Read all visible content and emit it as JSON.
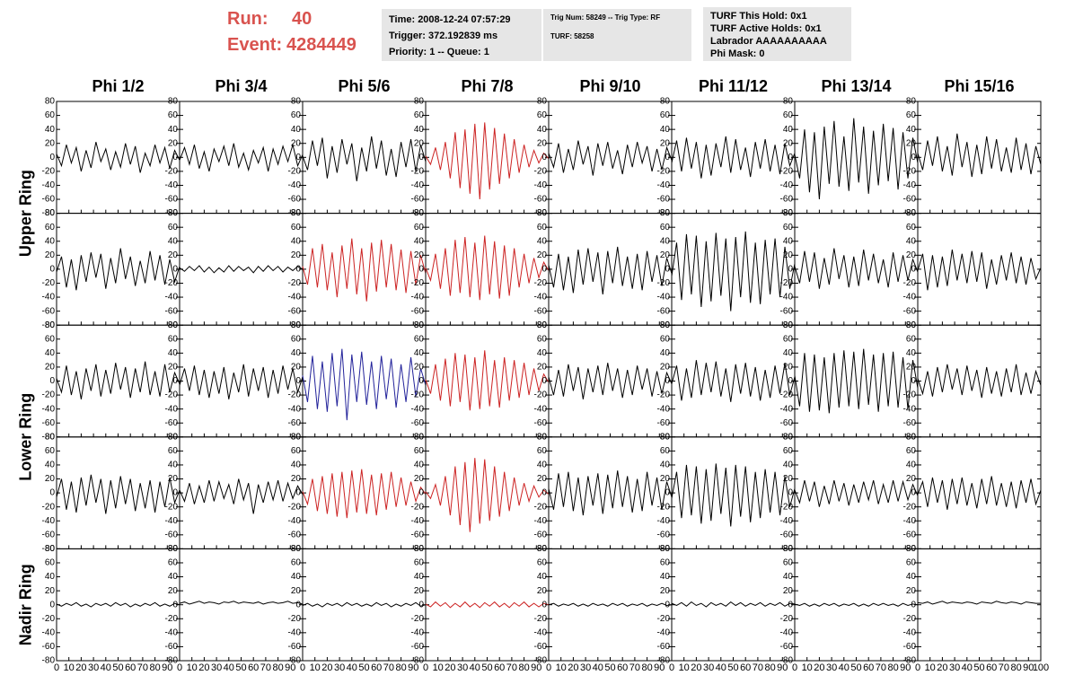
{
  "header": {
    "run_label": "Run:",
    "run": "40",
    "event_label": "Event:",
    "event": "4284449",
    "time": "Time: 2008-12-24 07:57:29",
    "trigger": "Trigger: 372.192839 ms",
    "priority": "Priority: 1 -- Queue: 1",
    "trig_num": "Trig Num: 58249 -- Trig Type: RF",
    "turf": "TURF: 58258",
    "turf_hold": "TURF This Hold: 0x1",
    "turf_active": "TURF Active Holds: 0x1",
    "labrador": "Labrador AAAAAAAAAA",
    "phi_mask": "Phi Mask: 0"
  },
  "chart_data": {
    "type": "line",
    "column_labels": [
      "Phi 1/2",
      "Phi 3/4",
      "Phi 5/6",
      "Phi 7/8",
      "Phi 9/10",
      "Phi 11/12",
      "Phi 13/14",
      "Phi 15/16"
    ],
    "ring_labels": [
      "Upper Ring",
      "Lower Ring",
      "Nadir Ring"
    ],
    "xlim": [
      0,
      100
    ],
    "xticks": [
      0,
      10,
      20,
      30,
      40,
      50,
      60,
      70,
      80,
      90,
      100
    ],
    "ylim": [
      -80,
      80
    ],
    "yticks": [
      80,
      60,
      40,
      20,
      0,
      -20,
      -40,
      -60,
      -80
    ],
    "x": [
      0,
      4,
      8,
      12,
      16,
      20,
      24,
      28,
      32,
      36,
      40,
      44,
      48,
      52,
      56,
      60,
      64,
      68,
      72,
      76,
      80,
      84,
      88,
      92,
      96,
      100
    ],
    "series": [
      {
        "color": "#000000",
        "values": [
          5,
          -12,
          18,
          -8,
          14,
          -20,
          10,
          -15,
          22,
          -6,
          12,
          -18,
          8,
          -14,
          20,
          -10,
          16,
          -22,
          6,
          -12,
          18,
          -8,
          14,
          -16,
          10,
          -4
        ]
      },
      {
        "color": "#000000",
        "values": [
          -4,
          14,
          -10,
          18,
          -16,
          8,
          -20,
          12,
          -6,
          16,
          -12,
          20,
          -14,
          6,
          -18,
          10,
          -8,
          14,
          -20,
          12,
          -10,
          16,
          -6,
          18,
          -12,
          4
        ]
      },
      {
        "color": "#000000",
        "values": [
          2,
          -18,
          24,
          -12,
          28,
          -30,
          16,
          -22,
          26,
          -10,
          20,
          -34,
          14,
          -20,
          30,
          -16,
          24,
          -26,
          12,
          -28,
          22,
          -14,
          26,
          -20,
          18,
          -6
        ]
      },
      {
        "color": "#cc2222",
        "values": [
          2,
          -10,
          14,
          -18,
          22,
          -30,
          36,
          -44,
          40,
          -52,
          48,
          -60,
          50,
          -46,
          42,
          -38,
          34,
          -30,
          26,
          -22,
          18,
          -14,
          10,
          -8,
          6,
          -2
        ]
      },
      {
        "color": "#000000",
        "values": [
          6,
          -14,
          20,
          -22,
          12,
          -18,
          24,
          -10,
          16,
          -26,
          20,
          -12,
          22,
          -16,
          10,
          -24,
          18,
          -14,
          22,
          -8,
          16,
          -20,
          12,
          -18,
          14,
          -4
        ]
      },
      {
        "color": "#000000",
        "values": [
          -8,
          24,
          -20,
          28,
          -16,
          22,
          -30,
          18,
          -26,
          20,
          -14,
          30,
          -22,
          26,
          -18,
          14,
          -28,
          22,
          -16,
          26,
          -20,
          18,
          -24,
          20,
          -12,
          6
        ]
      },
      {
        "color": "#000000",
        "values": [
          4,
          -30,
          40,
          -50,
          36,
          -60,
          44,
          -38,
          52,
          -42,
          30,
          -48,
          56,
          -36,
          44,
          -52,
          38,
          -40,
          48,
          -34,
          42,
          -46,
          36,
          -30,
          28,
          -8
        ]
      },
      {
        "color": "#000000",
        "values": [
          6,
          -18,
          24,
          -12,
          30,
          -20,
          16,
          -26,
          34,
          -14,
          22,
          -28,
          18,
          -24,
          30,
          -16,
          26,
          -20,
          14,
          -22,
          28,
          -18,
          20,
          -24,
          16,
          -10
        ]
      },
      {
        "color": "#000000",
        "values": [
          -4,
          18,
          -26,
          14,
          -30,
          20,
          -18,
          24,
          -12,
          22,
          -28,
          16,
          -20,
          30,
          -14,
          18,
          -24,
          12,
          -20,
          26,
          -16,
          20,
          -22,
          14,
          -18,
          4
        ]
      },
      {
        "color": "#000000",
        "values": [
          2,
          -3,
          4,
          -2,
          5,
          -4,
          3,
          -5,
          2,
          -4,
          5,
          -3,
          4,
          -2,
          3,
          -5,
          4,
          -3,
          5,
          -2,
          4,
          -4,
          3,
          -2,
          4,
          0
        ]
      },
      {
        "color": "#cc2222",
        "values": [
          4,
          -22,
          30,
          -26,
          36,
          -30,
          24,
          -40,
          34,
          -28,
          44,
          -36,
          30,
          -46,
          38,
          -32,
          42,
          -26,
          36,
          -30,
          28,
          -34,
          26,
          -22,
          20,
          -6
        ]
      },
      {
        "color": "#cc2222",
        "values": [
          2,
          -16,
          22,
          -28,
          30,
          -38,
          42,
          -34,
          46,
          -40,
          38,
          -44,
          48,
          -36,
          40,
          -42,
          34,
          -38,
          30,
          -26,
          22,
          -20,
          16,
          -12,
          10,
          -2
        ]
      },
      {
        "color": "#000000",
        "values": [
          6,
          -26,
          22,
          -30,
          18,
          -34,
          28,
          -22,
          30,
          -18,
          24,
          -36,
          26,
          -20,
          32,
          -24,
          18,
          -28,
          22,
          -30,
          26,
          -18,
          20,
          -24,
          16,
          -6
        ]
      },
      {
        "color": "#000000",
        "values": [
          -10,
          38,
          -44,
          50,
          -36,
          48,
          -54,
          40,
          -46,
          52,
          -38,
          44,
          -60,
          46,
          -40,
          54,
          -48,
          38,
          -50,
          42,
          -36,
          44,
          -40,
          32,
          -28,
          8
        ]
      },
      {
        "color": "#000000",
        "values": [
          4,
          -20,
          26,
          -18,
          24,
          -28,
          16,
          -22,
          30,
          -14,
          20,
          -26,
          18,
          -24,
          28,
          -16,
          22,
          -20,
          14,
          -26,
          24,
          -18,
          20,
          -16,
          14,
          -4
        ]
      },
      {
        "color": "#000000",
        "values": [
          -2,
          22,
          -30,
          20,
          -26,
          18,
          -24,
          28,
          -16,
          22,
          -20,
          26,
          -18,
          24,
          -28,
          14,
          -22,
          20,
          -16,
          24,
          -20,
          18,
          -22,
          16,
          -14,
          2
        ]
      },
      {
        "color": "#000000",
        "values": [
          4,
          -16,
          22,
          -20,
          14,
          -26,
          18,
          -14,
          24,
          -22,
          16,
          -18,
          26,
          -12,
          20,
          -24,
          18,
          -16,
          28,
          -20,
          14,
          -22,
          24,
          -16,
          12,
          -4
        ]
      },
      {
        "color": "#000000",
        "values": [
          -6,
          18,
          -14,
          22,
          -20,
          16,
          -24,
          14,
          -18,
          20,
          -26,
          12,
          -16,
          24,
          -22,
          18,
          -14,
          20,
          -24,
          16,
          -18,
          22,
          -12,
          18,
          -16,
          6
        ]
      },
      {
        "color": "#22229a",
        "values": [
          8,
          -30,
          36,
          -40,
          28,
          -44,
          40,
          -36,
          46,
          -56,
          38,
          -30,
          42,
          -34,
          28,
          -40,
          36,
          -26,
          32,
          -38,
          24,
          -30,
          34,
          -22,
          18,
          -6
        ]
      },
      {
        "color": "#cc2222",
        "values": [
          2,
          -18,
          24,
          -28,
          32,
          -36,
          40,
          -30,
          38,
          -42,
          34,
          -40,
          44,
          -36,
          30,
          -38,
          34,
          -28,
          30,
          -24,
          26,
          -20,
          18,
          -14,
          10,
          -2
        ]
      },
      {
        "color": "#000000",
        "values": [
          6,
          -20,
          16,
          -22,
          24,
          -14,
          20,
          -26,
          18,
          -16,
          22,
          -20,
          26,
          -14,
          18,
          -24,
          16,
          -20,
          22,
          -12,
          18,
          -22,
          14,
          -18,
          12,
          -4
        ]
      },
      {
        "color": "#000000",
        "values": [
          -4,
          22,
          -28,
          18,
          -24,
          30,
          -20,
          26,
          -16,
          28,
          -22,
          18,
          -30,
          24,
          -18,
          26,
          -22,
          20,
          -28,
          16,
          -24,
          22,
          -18,
          26,
          -20,
          6
        ]
      },
      {
        "color": "#000000",
        "values": [
          8,
          -36,
          40,
          -44,
          38,
          -42,
          34,
          -46,
          40,
          -38,
          44,
          -36,
          42,
          -40,
          46,
          -34,
          38,
          -44,
          40,
          -36,
          42,
          -38,
          34,
          -40,
          30,
          -10
        ]
      },
      {
        "color": "#000000",
        "values": [
          4,
          -18,
          14,
          -22,
          20,
          -16,
          24,
          -12,
          18,
          -20,
          22,
          -14,
          16,
          -24,
          20,
          -18,
          14,
          -22,
          18,
          -16,
          24,
          -20,
          12,
          -18,
          14,
          -6
        ]
      },
      {
        "color": "#000000",
        "values": [
          -6,
          20,
          -24,
          16,
          -28,
          22,
          -18,
          26,
          -14,
          20,
          -30,
          18,
          -22,
          24,
          -16,
          20,
          -26,
          14,
          -22,
          18,
          -28,
          16,
          -20,
          22,
          -14,
          4
        ]
      },
      {
        "color": "#000000",
        "values": [
          4,
          -12,
          14,
          -16,
          10,
          -14,
          18,
          -12,
          16,
          -8,
          12,
          -16,
          20,
          -10,
          14,
          -30,
          12,
          -14,
          16,
          -10,
          18,
          -12,
          14,
          -8,
          10,
          -2
        ]
      },
      {
        "color": "#cc2222",
        "values": [
          2,
          -16,
          20,
          -26,
          24,
          -30,
          28,
          -34,
          30,
          -36,
          32,
          -28,
          34,
          -30,
          26,
          -32,
          28,
          -24,
          30,
          -20,
          22,
          -18,
          16,
          -12,
          8,
          -2
        ]
      },
      {
        "color": "#cc2222",
        "values": [
          2,
          -8,
          12,
          -18,
          24,
          -32,
          38,
          -46,
          44,
          -56,
          50,
          -44,
          48,
          -40,
          38,
          -34,
          30,
          -26,
          22,
          -18,
          14,
          -12,
          10,
          -6,
          4,
          -2
        ]
      },
      {
        "color": "#000000",
        "values": [
          6,
          -24,
          28,
          -20,
          30,
          -26,
          22,
          -32,
          24,
          -18,
          28,
          -30,
          26,
          -22,
          32,
          -20,
          24,
          -28,
          20,
          -26,
          30,
          -18,
          22,
          -24,
          16,
          -6
        ]
      },
      {
        "color": "#000000",
        "values": [
          -8,
          30,
          -36,
          40,
          -32,
          38,
          -44,
          34,
          -40,
          42,
          -30,
          36,
          -48,
          40,
          -34,
          38,
          -42,
          30,
          -36,
          34,
          -28,
          30,
          -32,
          24,
          -20,
          6
        ]
      },
      {
        "color": "#000000",
        "values": [
          4,
          -14,
          18,
          -12,
          16,
          -20,
          10,
          -16,
          18,
          -12,
          14,
          -18,
          12,
          -14,
          16,
          -10,
          18,
          -16,
          12,
          -14,
          18,
          -12,
          16,
          -10,
          12,
          -4
        ]
      },
      {
        "color": "#000000",
        "values": [
          -2,
          16,
          -20,
          22,
          -14,
          18,
          -24,
          20,
          -16,
          22,
          -18,
          14,
          -22,
          20,
          -16,
          24,
          -18,
          14,
          -20,
          16,
          -22,
          18,
          -14,
          20,
          -16,
          4
        ]
      },
      {
        "color": "#000000",
        "values": [
          1,
          -2,
          2,
          -1,
          3,
          -2,
          1,
          -3,
          2,
          -1,
          2,
          -2,
          3,
          -1,
          2,
          -3,
          1,
          -2,
          2,
          -1,
          3,
          -2,
          1,
          -2,
          2,
          0
        ]
      },
      {
        "color": "#000000",
        "values": [
          2,
          4,
          1,
          3,
          5,
          2,
          4,
          3,
          1,
          4,
          3,
          5,
          2,
          4,
          3,
          2,
          4,
          1,
          3,
          4,
          2,
          3,
          5,
          2,
          3,
          1
        ]
      },
      {
        "color": "#000000",
        "values": [
          -1,
          2,
          -2,
          1,
          -3,
          2,
          -1,
          2,
          -2,
          3,
          -1,
          2,
          -2,
          1,
          -2,
          3,
          -1,
          2,
          -3,
          1,
          -2,
          2,
          -1,
          3,
          -2,
          0
        ]
      },
      {
        "color": "#cc2222",
        "values": [
          1,
          -3,
          4,
          -2,
          3,
          -4,
          2,
          -3,
          4,
          -3,
          2,
          -4,
          3,
          -2,
          4,
          -3,
          2,
          -4,
          3,
          -2,
          4,
          -3,
          2,
          -3,
          2,
          0
        ]
      },
      {
        "color": "#000000",
        "values": [
          0,
          2,
          -2,
          1,
          -1,
          2,
          -2,
          1,
          -2,
          2,
          -1,
          1,
          -2,
          2,
          -1,
          2,
          -2,
          1,
          -1,
          2,
          -2,
          1,
          -1,
          2,
          -1,
          0
        ]
      },
      {
        "color": "#000000",
        "values": [
          2,
          -1,
          3,
          -2,
          4,
          -1,
          2,
          -3,
          3,
          -1,
          2,
          -2,
          4,
          -1,
          3,
          -2,
          2,
          -1,
          3,
          -2,
          2,
          -1,
          3,
          -2,
          2,
          1
        ]
      },
      {
        "color": "#000000",
        "values": [
          1,
          -1,
          2,
          -2,
          1,
          -2,
          2,
          -1,
          2,
          -2,
          1,
          -1,
          2,
          -2,
          1,
          -2,
          2,
          -1,
          2,
          -1,
          1,
          -2,
          2,
          -1,
          1,
          0
        ]
      },
      {
        "color": "#000000",
        "values": [
          3,
          2,
          4,
          1,
          3,
          5,
          2,
          4,
          3,
          2,
          4,
          3,
          1,
          4,
          3,
          2,
          5,
          3,
          2,
          4,
          3,
          1,
          4,
          3,
          2,
          2
        ]
      }
    ]
  }
}
